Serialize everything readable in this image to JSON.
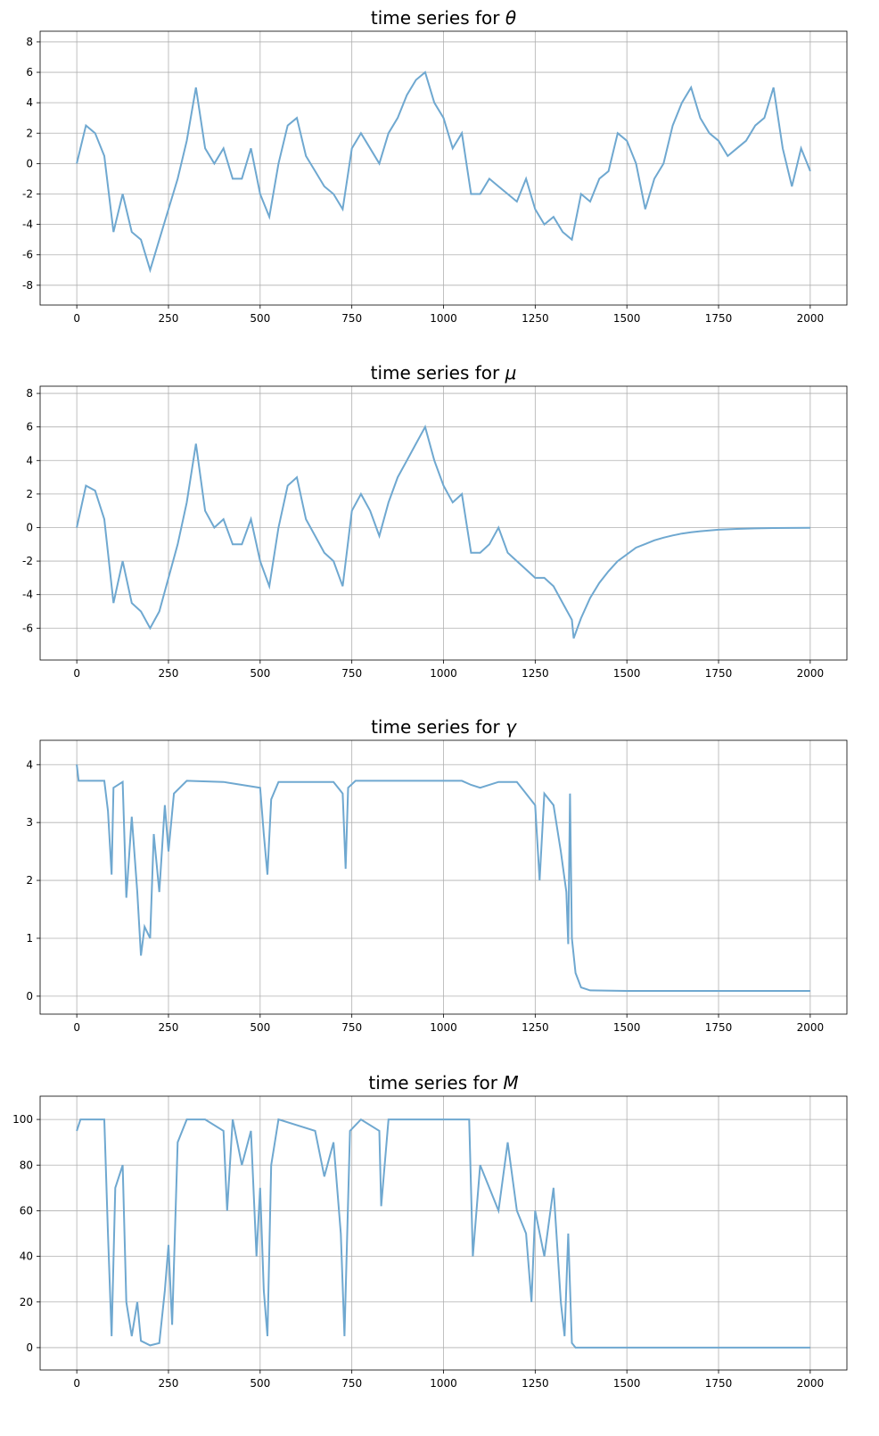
{
  "chart_data": [
    {
      "type": "line",
      "title_prefix": "time series for ",
      "title_symbol": "θ",
      "xlim": [
        -100,
        2100
      ],
      "ylim": [
        -9.3,
        8.7
      ],
      "grid": true,
      "xticks": [
        0,
        250,
        500,
        750,
        1000,
        1250,
        1500,
        1750,
        2000
      ],
      "yticks": [
        -8,
        -6,
        -4,
        -2,
        0,
        2,
        4,
        6,
        8
      ],
      "line_color": "#6fa8d0",
      "x": [
        0,
        25,
        50,
        75,
        100,
        125,
        150,
        175,
        200,
        225,
        250,
        275,
        300,
        325,
        350,
        375,
        400,
        425,
        450,
        475,
        500,
        525,
        550,
        575,
        600,
        625,
        650,
        675,
        700,
        725,
        750,
        775,
        800,
        825,
        850,
        875,
        900,
        925,
        950,
        975,
        1000,
        1025,
        1050,
        1075,
        1100,
        1125,
        1150,
        1175,
        1200,
        1225,
        1250,
        1275,
        1300,
        1325,
        1350,
        1375,
        1400,
        1425,
        1450,
        1475,
        1500,
        1525,
        1550,
        1575,
        1600,
        1625,
        1650,
        1675,
        1700,
        1725,
        1750,
        1775,
        1800,
        1825,
        1850,
        1875,
        1900,
        1925,
        1950,
        1975,
        2000
      ],
      "y": [
        0,
        2.5,
        2,
        0.5,
        -4.5,
        -2,
        -4.5,
        -5,
        -7,
        -5,
        -3,
        -1,
        1.5,
        5,
        1,
        0,
        1,
        -1,
        -1,
        1,
        -2,
        -3.5,
        0,
        2.5,
        3,
        0.5,
        -0.5,
        -1.5,
        -2,
        -3,
        1,
        2,
        1,
        0,
        2,
        3,
        4.5,
        5.5,
        6,
        4,
        3,
        1,
        2,
        -2,
        -2,
        -1,
        -1.5,
        -2,
        -2.5,
        -1,
        -3,
        -4,
        -3.5,
        -4.5,
        -5,
        -2,
        -2.5,
        -1,
        -0.5,
        2,
        1.5,
        0,
        -3,
        -1,
        0,
        2.5,
        4,
        5,
        3,
        2,
        1.5,
        0.5,
        1,
        1.5,
        2.5,
        3,
        5,
        1,
        -1.5,
        1,
        -0.5
      ]
    },
    {
      "type": "line",
      "title_prefix": "time series for ",
      "title_symbol": "μ",
      "xlim": [
        -100,
        2100
      ],
      "ylim": [
        -7.9,
        8.43
      ],
      "grid": true,
      "xticks": [
        0,
        250,
        500,
        750,
        1000,
        1250,
        1500,
        1750,
        2000
      ],
      "yticks": [
        -6,
        -4,
        -2,
        0,
        2,
        4,
        6,
        8
      ],
      "line_color": "#6fa8d0",
      "x": [
        0,
        25,
        50,
        75,
        100,
        125,
        150,
        175,
        200,
        225,
        250,
        275,
        300,
        325,
        350,
        375,
        400,
        425,
        450,
        475,
        500,
        525,
        550,
        575,
        600,
        625,
        650,
        675,
        700,
        725,
        750,
        775,
        800,
        825,
        850,
        875,
        900,
        925,
        950,
        975,
        1000,
        1025,
        1050,
        1075,
        1100,
        1125,
        1150,
        1175,
        1200,
        1225,
        1250,
        1275,
        1300,
        1325,
        1350,
        1355,
        1375,
        1400,
        1425,
        1450,
        1475,
        1500,
        1525,
        1550,
        1575,
        1600,
        1625,
        1650,
        1675,
        1700,
        1750,
        1800,
        1850,
        1900,
        1950,
        2000
      ],
      "y": [
        0,
        2.5,
        2.2,
        0.5,
        -4.5,
        -2,
        -4.5,
        -5,
        -6,
        -5,
        -3,
        -1,
        1.5,
        5,
        1,
        0,
        0.5,
        -1,
        -1,
        0.5,
        -2,
        -3.5,
        0,
        2.5,
        3,
        0.5,
        -0.5,
        -1.5,
        -2,
        -3.5,
        1,
        2,
        1,
        -0.5,
        1.5,
        3,
        4,
        5,
        6,
        4,
        2.5,
        1.5,
        2,
        -1.5,
        -1.5,
        -1,
        0,
        -1.5,
        -2,
        -2.5,
        -3,
        -3,
        -3.5,
        -4.5,
        -5.5,
        -6.6,
        -5.4,
        -4.2,
        -3.3,
        -2.6,
        -2.0,
        -1.6,
        -1.2,
        -0.98,
        -0.76,
        -0.6,
        -0.47,
        -0.36,
        -0.28,
        -0.22,
        -0.13,
        -0.08,
        -0.05,
        -0.03,
        -0.02,
        -0.01
      ]
    },
    {
      "type": "line",
      "title_prefix": "time series for ",
      "title_symbol": "γ",
      "xlim": [
        -100,
        2100
      ],
      "ylim": [
        -0.31,
        4.42
      ],
      "grid": true,
      "xticks": [
        0,
        250,
        500,
        750,
        1000,
        1250,
        1500,
        1750,
        2000
      ],
      "yticks": [
        0,
        1,
        2,
        3,
        4
      ],
      "line_color": "#6fa8d0",
      "x": [
        0,
        5,
        75,
        85,
        95,
        100,
        125,
        135,
        150,
        165,
        175,
        185,
        200,
        210,
        225,
        240,
        250,
        265,
        300,
        400,
        450,
        500,
        510,
        520,
        530,
        550,
        700,
        725,
        733,
        740,
        760,
        1050,
        1075,
        1100,
        1150,
        1200,
        1225,
        1250,
        1262,
        1275,
        1300,
        1320,
        1335,
        1340,
        1345,
        1350,
        1360,
        1375,
        1400,
        1500,
        2000
      ],
      "y": [
        4.0,
        3.72,
        3.72,
        3.2,
        2.1,
        3.6,
        3.7,
        1.7,
        3.1,
        1.8,
        0.7,
        1.2,
        1.0,
        2.8,
        1.8,
        3.3,
        2.5,
        3.5,
        3.72,
        3.7,
        3.65,
        3.6,
        2.8,
        2.1,
        3.4,
        3.7,
        3.7,
        3.5,
        2.2,
        3.6,
        3.72,
        3.72,
        3.65,
        3.6,
        3.7,
        3.7,
        3.5,
        3.3,
        2.0,
        3.5,
        3.3,
        2.5,
        1.8,
        0.9,
        3.5,
        1.0,
        0.4,
        0.15,
        0.1,
        0.09,
        0.09
      ]
    },
    {
      "type": "line",
      "title_prefix": "time series for ",
      "title_symbol": "M",
      "xlim": [
        -100,
        2100
      ],
      "ylim": [
        -9.8,
        110.2
      ],
      "grid": true,
      "xticks": [
        0,
        250,
        500,
        750,
        1000,
        1250,
        1500,
        1750,
        2000
      ],
      "yticks": [
        0,
        20,
        40,
        60,
        80,
        100
      ],
      "line_color": "#6fa8d0",
      "x": [
        0,
        10,
        75,
        85,
        95,
        105,
        125,
        135,
        150,
        165,
        175,
        200,
        225,
        240,
        250,
        260,
        275,
        300,
        350,
        400,
        410,
        425,
        450,
        475,
        490,
        500,
        510,
        520,
        530,
        550,
        650,
        675,
        700,
        720,
        730,
        745,
        775,
        825,
        830,
        850,
        1050,
        1070,
        1080,
        1100,
        1125,
        1150,
        1175,
        1200,
        1225,
        1240,
        1250,
        1275,
        1300,
        1320,
        1330,
        1340,
        1350,
        1360,
        2000
      ],
      "y": [
        95,
        100,
        100,
        50,
        5,
        70,
        80,
        20,
        5,
        20,
        3,
        1,
        2,
        25,
        45,
        10,
        90,
        100,
        100,
        95,
        60,
        100,
        80,
        95,
        40,
        70,
        25,
        5,
        80,
        100,
        95,
        75,
        90,
        50,
        5,
        95,
        100,
        95,
        62,
        100,
        100,
        100,
        40,
        80,
        70,
        60,
        90,
        60,
        50,
        20,
        60,
        40,
        70,
        20,
        5,
        50,
        2,
        0,
        0
      ]
    }
  ]
}
